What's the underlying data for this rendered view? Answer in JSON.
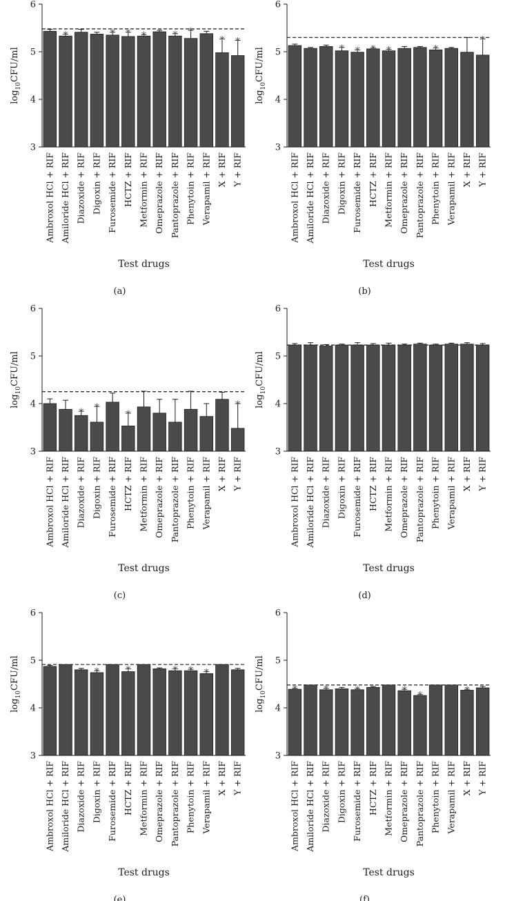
{
  "chart_data": [
    {
      "type": "bar",
      "panel_label": "(a)",
      "ylabel_main": "log",
      "ylabel_sub": "10",
      "ylabel_tail": "CFU/ml",
      "xlabel": "Test drugs",
      "ylim": [
        3,
        6
      ],
      "yticks": [
        "3",
        "4",
        "5",
        "6"
      ],
      "baseline": 5.48,
      "categories": [
        "Ambroxol HCl + RIF",
        "Amiloride HCl + RIF",
        "Diazoxide + RIF",
        "Digoxin + RIF",
        "Furosemide + RIF",
        "HCTZ + RIF",
        "Metformin + RIF",
        "Omeprazole + RIF",
        "Pantoprazole + RIF",
        "Phenytoin + RIF",
        "Verapamil + RIF",
        "X + RIF",
        "Y + RIF"
      ],
      "values": [
        5.43,
        5.33,
        5.41,
        5.37,
        5.35,
        5.32,
        5.33,
        5.42,
        5.33,
        5.28,
        5.38,
        4.98,
        4.92
      ],
      "errors": [
        0.04,
        0.04,
        0.06,
        0.04,
        0.06,
        0.09,
        0.03,
        0.03,
        0.05,
        0.17,
        0.05,
        0.29,
        0.32
      ],
      "significant": [
        false,
        true,
        false,
        false,
        true,
        true,
        true,
        false,
        true,
        true,
        false,
        true,
        true
      ],
      "star": "*"
    },
    {
      "type": "bar",
      "panel_label": "(b)",
      "ylabel_main": "log",
      "ylabel_sub": "10",
      "ylabel_tail": "CFU/ml",
      "xlabel": "Test drugs",
      "ylim": [
        3,
        6
      ],
      "yticks": [
        "3",
        "4",
        "5",
        "6"
      ],
      "baseline": 5.3,
      "categories": [
        "Ambroxol HCl + RIF",
        "Amiloride HCl + RIF",
        "Diazoxide + RIF",
        "Digoxin + RIF",
        "Furosemide + RIF",
        "HCTZ + RIF",
        "Metformin + RIF",
        "Omeprazole + RIF",
        "Pantoprazole + RIF",
        "Phenytoin + RIF",
        "Verapamil + RIF",
        "X + RIF",
        "Y + RIF"
      ],
      "values": [
        5.13,
        5.07,
        5.11,
        5.02,
        4.99,
        5.06,
        5.02,
        5.07,
        5.09,
        5.04,
        5.07,
        4.99,
        4.93
      ],
      "errors": [
        0.03,
        0.02,
        0.03,
        0.07,
        0.05,
        0.02,
        0.03,
        0.04,
        0.02,
        0.04,
        0.02,
        0.31,
        0.34
      ],
      "significant": [
        false,
        false,
        false,
        true,
        true,
        true,
        true,
        false,
        false,
        true,
        false,
        false,
        true
      ],
      "star": "*"
    },
    {
      "type": "bar",
      "panel_label": "(c)",
      "ylabel_main": "log",
      "ylabel_sub": "10",
      "ylabel_tail": "CFU/ml",
      "xlabel": "Test drugs",
      "ylim": [
        3,
        6
      ],
      "yticks": [
        "3",
        "4",
        "5",
        "6"
      ],
      "baseline": 4.25,
      "categories": [
        "Ambroxol HCl + RIF",
        "Amiloride HCl + RIF",
        "Diazoxide + RIF",
        "Digoxin + RIF",
        "Furosemide + RIF",
        "HCTZ + RIF",
        "Metformin + RIF",
        "Omeprazole + RIF",
        "Pantoprazole + RIF",
        "Phenytoin + RIF",
        "Verapamil + RIF",
        "X + RIF",
        "Y + RIF"
      ],
      "values": [
        4.0,
        3.88,
        3.75,
        3.61,
        4.03,
        3.53,
        3.93,
        3.8,
        3.61,
        3.88,
        3.73,
        4.09,
        3.48
      ],
      "errors": [
        0.1,
        0.19,
        0.09,
        0.33,
        0.19,
        0.27,
        0.33,
        0.29,
        0.48,
        0.38,
        0.27,
        0.15,
        0.52
      ],
      "significant": [
        false,
        false,
        true,
        true,
        false,
        true,
        false,
        false,
        false,
        false,
        false,
        false,
        true
      ],
      "star": "*"
    },
    {
      "type": "bar",
      "panel_label": "(d)",
      "ylabel_main": "log",
      "ylabel_sub": "10",
      "ylabel_tail": "CFU/ml",
      "xlabel": "Test drugs",
      "ylim": [
        3,
        6
      ],
      "yticks": [
        "3",
        "4",
        "5",
        "6"
      ],
      "baseline": 5.23,
      "categories": [
        "Ambroxol HCl + RIF",
        "Amiloride HCl + RIF",
        "Diazoxide + RIF",
        "Digoxin + RIF",
        "Furosemide + RIF",
        "HCTZ + RIF",
        "Metformin + RIF",
        "Omeprazole + RIF",
        "Pantoprazole + RIF",
        "Phenytoin + RIF",
        "Verapamil + RIF",
        "X + RIF",
        "Y + RIF"
      ],
      "values": [
        5.23,
        5.23,
        5.21,
        5.23,
        5.23,
        5.23,
        5.23,
        5.23,
        5.25,
        5.23,
        5.25,
        5.25,
        5.23
      ],
      "errors": [
        0.03,
        0.05,
        0.03,
        0.02,
        0.05,
        0.03,
        0.04,
        0.02,
        0.02,
        0.02,
        0.02,
        0.03,
        0.03
      ],
      "significant": [
        false,
        false,
        false,
        false,
        false,
        false,
        false,
        false,
        false,
        false,
        false,
        false,
        false
      ],
      "star": "*"
    },
    {
      "type": "bar",
      "panel_label": "(e)",
      "ylabel_main": "log",
      "ylabel_sub": "10",
      "ylabel_tail": "CFU/ml",
      "xlabel": "Test drugs",
      "ylim": [
        3,
        6
      ],
      "yticks": [
        "3",
        "4",
        "5",
        "6"
      ],
      "baseline": 4.91,
      "categories": [
        "Ambroxol HCl + RIF",
        "Amiloride HCl + RIF",
        "Diazoxide + RIF",
        "Digoxin + RIF",
        "Furosemide + RIF",
        "HCTZ + RIF",
        "Metformin + RIF",
        "Omeprazole + RIF",
        "Pantoprazole + RIF",
        "Phenytoin + RIF",
        "Verapamil + RIF",
        "X + RIF",
        "Y + RIF"
      ],
      "values": [
        4.87,
        4.91,
        4.8,
        4.74,
        4.91,
        4.76,
        4.91,
        4.82,
        4.78,
        4.78,
        4.72,
        4.91,
        4.8
      ],
      "errors": [
        0.02,
        0.0,
        0.03,
        0.04,
        0.0,
        0.06,
        0.0,
        0.02,
        0.04,
        0.03,
        0.04,
        0.0,
        0.03
      ],
      "significant": [
        false,
        false,
        false,
        true,
        false,
        true,
        false,
        false,
        true,
        true,
        true,
        false,
        false
      ],
      "star": "*"
    },
    {
      "type": "bar",
      "panel_label": "(f)",
      "ylabel_main": "log",
      "ylabel_sub": "10",
      "ylabel_tail": "CFU/ml",
      "xlabel": "Test drugs",
      "ylim": [
        3,
        6
      ],
      "yticks": [
        "3",
        "4",
        "5",
        "6"
      ],
      "baseline": 4.48,
      "categories": [
        "Ambroxol HCl + RIF",
        "Amiloride HCl + RIF",
        "Diazoxide + RIF",
        "Digoxin + RIF",
        "Furosemide + RIF",
        "HCTZ + RIF",
        "Metformin + RIF",
        "Omeprazole + RIF",
        "Pantoprazole + RIF",
        "Phenytoin + RIF",
        "Verapamil + RIF",
        "X + RIF",
        "Y + RIF"
      ],
      "values": [
        4.39,
        4.48,
        4.38,
        4.4,
        4.38,
        4.43,
        4.48,
        4.36,
        4.26,
        4.48,
        4.48,
        4.37,
        4.42
      ],
      "errors": [
        0.02,
        0.0,
        0.03,
        0.03,
        0.02,
        0.02,
        0.0,
        0.03,
        0.02,
        0.0,
        0.0,
        0.02,
        0.03
      ],
      "significant": [
        true,
        false,
        true,
        false,
        true,
        false,
        false,
        true,
        true,
        false,
        false,
        true,
        false
      ],
      "star": "*"
    }
  ]
}
